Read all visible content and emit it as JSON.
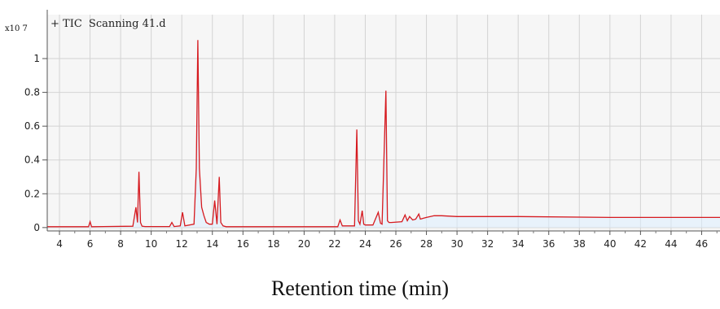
{
  "chart_data": {
    "type": "line",
    "title_prefix": "+ TIC",
    "title": "Scanning 41.d",
    "exponent_label": "x10 7",
    "xlabel": "Retention time (min)",
    "ylabel": "",
    "xlim": [
      3.2,
      47.2
    ],
    "ylim": [
      -0.02,
      1.26
    ],
    "grid": true,
    "x_ticks": [
      "4",
      "6",
      "8",
      "10",
      "12",
      "14",
      "16",
      "18",
      "20",
      "22",
      "24",
      "26",
      "28",
      "30",
      "32",
      "34",
      "36",
      "38",
      "40",
      "42",
      "44",
      "46"
    ],
    "y_ticks": [
      "0",
      "0.2",
      "0.4",
      "0.6",
      "0.8",
      "1"
    ],
    "colors": {
      "trace": "#d61a1f",
      "grid": "#d3d3d3",
      "fill": "#dcefff"
    },
    "series": [
      {
        "x": [
          3.2,
          5.9,
          6.0,
          6.1,
          8.8,
          9.0,
          9.1,
          9.2,
          9.3,
          9.4,
          9.6,
          11.2,
          11.35,
          11.5,
          11.9,
          12.05,
          12.2,
          12.8,
          12.95,
          13.05,
          13.15,
          13.3,
          13.45,
          13.6,
          13.8,
          14.0,
          14.15,
          14.3,
          14.45,
          14.55,
          14.7,
          14.9,
          19.0,
          22.2,
          22.35,
          22.5,
          23.3,
          23.45,
          23.55,
          23.65,
          23.8,
          23.9,
          24.0,
          24.5,
          24.85,
          25.0,
          25.1,
          25.35,
          25.45,
          25.55,
          25.7,
          26.4,
          26.6,
          26.75,
          26.9,
          27.1,
          27.3,
          27.5,
          27.6,
          27.8,
          28.0,
          28.5,
          29.0,
          30.0,
          34.0,
          40.0,
          47.2
        ],
        "y": [
          0.005,
          0.005,
          0.035,
          0.005,
          0.008,
          0.12,
          0.03,
          0.33,
          0.03,
          0.008,
          0.006,
          0.006,
          0.03,
          0.006,
          0.01,
          0.09,
          0.01,
          0.02,
          0.35,
          1.11,
          0.35,
          0.12,
          0.07,
          0.03,
          0.02,
          0.02,
          0.16,
          0.02,
          0.3,
          0.03,
          0.01,
          0.005,
          0.005,
          0.005,
          0.045,
          0.01,
          0.01,
          0.58,
          0.04,
          0.02,
          0.1,
          0.02,
          0.015,
          0.015,
          0.09,
          0.025,
          0.02,
          0.81,
          0.04,
          0.03,
          0.03,
          0.035,
          0.075,
          0.04,
          0.065,
          0.045,
          0.05,
          0.08,
          0.05,
          0.055,
          0.06,
          0.07,
          0.07,
          0.065,
          0.065,
          0.06,
          0.06
        ]
      }
    ]
  }
}
